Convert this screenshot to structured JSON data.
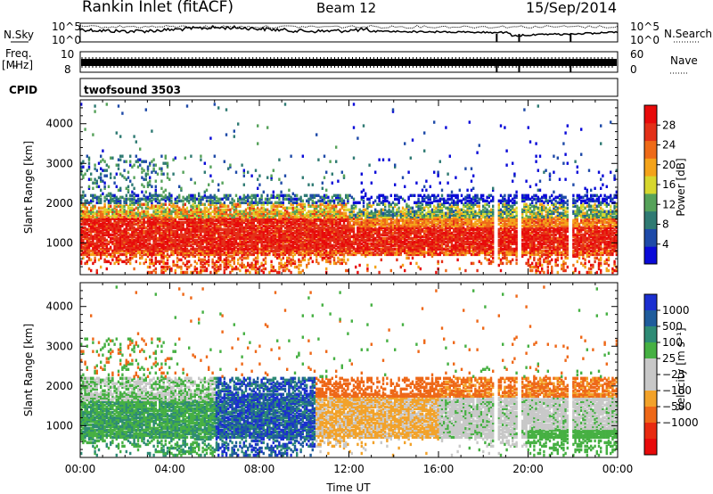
{
  "header": {
    "station": "Rankin Inlet (fitACF)",
    "beam": "Beam 12",
    "date": "15/Sep/2014"
  },
  "top_panels": {
    "nsky_label": "N.Sky",
    "nsearch_label": "N.Search",
    "nsky_ticks": [
      "10^5",
      "10^0"
    ],
    "nsearch_ticks": [
      "10^5",
      "10^0"
    ],
    "freq_label": "Freq.",
    "freq_unit": "[MHz]",
    "freq_ticks": [
      "10",
      "8"
    ],
    "nave_label": "Nave",
    "nave_ticks": [
      "60",
      "0"
    ],
    "cpid_label": "CPID",
    "cpid_value": "twofsound 3503"
  },
  "colors": {
    "power_scale": [
      "#0a0ad8",
      "#1e4aa8",
      "#2f7a73",
      "#56a25a",
      "#d7d72e",
      "#f4a31a",
      "#ee6a18",
      "#e33018",
      "#e80a0a"
    ],
    "velocity_scale": [
      "#1b2fd0",
      "#1f5c9c",
      "#2e8b75",
      "#46b043",
      "#c8c8c8",
      "#c8c8c8",
      "#f2a22a",
      "#ee6818",
      "#e82a10",
      "#e80a0a"
    ]
  },
  "chart_data": [
    {
      "type": "heatmap",
      "parameter": "power",
      "xlabel": "",
      "ylabel": "Slant Range [km]",
      "x_ticks": [
        "00:00",
        "04:00",
        "08:00",
        "12:00",
        "16:00",
        "20:00",
        "00:00"
      ],
      "xlim": [
        0,
        24
      ],
      "ylim": [
        200,
        4600
      ],
      "y_ticks": [
        1000,
        2000,
        3000,
        4000
      ],
      "colorbar": {
        "label": "Power [dB]",
        "ticks": [
          4,
          8,
          12,
          16,
          20,
          24,
          28
        ],
        "range": [
          0,
          32
        ]
      },
      "main_band_km": [
        700,
        1800
      ],
      "data_gaps_hours": [
        18.6,
        19.6,
        21.9
      ]
    },
    {
      "type": "heatmap",
      "parameter": "velocity",
      "xlabel": "Time UT",
      "ylabel": "Slant Range [km]",
      "x_ticks": [
        "00:00",
        "04:00",
        "08:00",
        "12:00",
        "16:00",
        "20:00",
        "00:00"
      ],
      "xlim": [
        0,
        24
      ],
      "ylim": [
        200,
        4600
      ],
      "y_ticks": [
        1000,
        2000,
        3000,
        4000
      ],
      "colorbar": {
        "label": "Velocity [m s⁻¹]",
        "ticks": [
          "1000",
          "500",
          "100",
          "25",
          "−25",
          "−100",
          "−500",
          "−1000"
        ]
      },
      "main_band_km": [
        700,
        1800
      ],
      "data_gaps_hours": [
        18.6,
        19.6,
        21.9
      ]
    }
  ]
}
